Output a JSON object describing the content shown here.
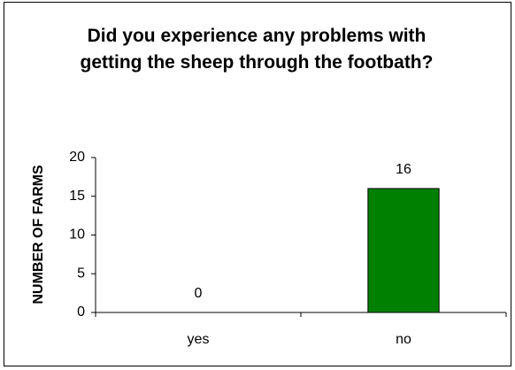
{
  "chart_data": {
    "type": "bar",
    "title": "Did you experience any problems with getting the sheep through the footbath?",
    "y_label": "NUMBER OF FARMS",
    "categories": [
      "yes",
      "no"
    ],
    "values": [
      0,
      16
    ],
    "color": "#008000",
    "ylim": [
      0,
      20
    ],
    "yticks": [
      0,
      5,
      10,
      15,
      20
    ],
    "grid": false
  }
}
